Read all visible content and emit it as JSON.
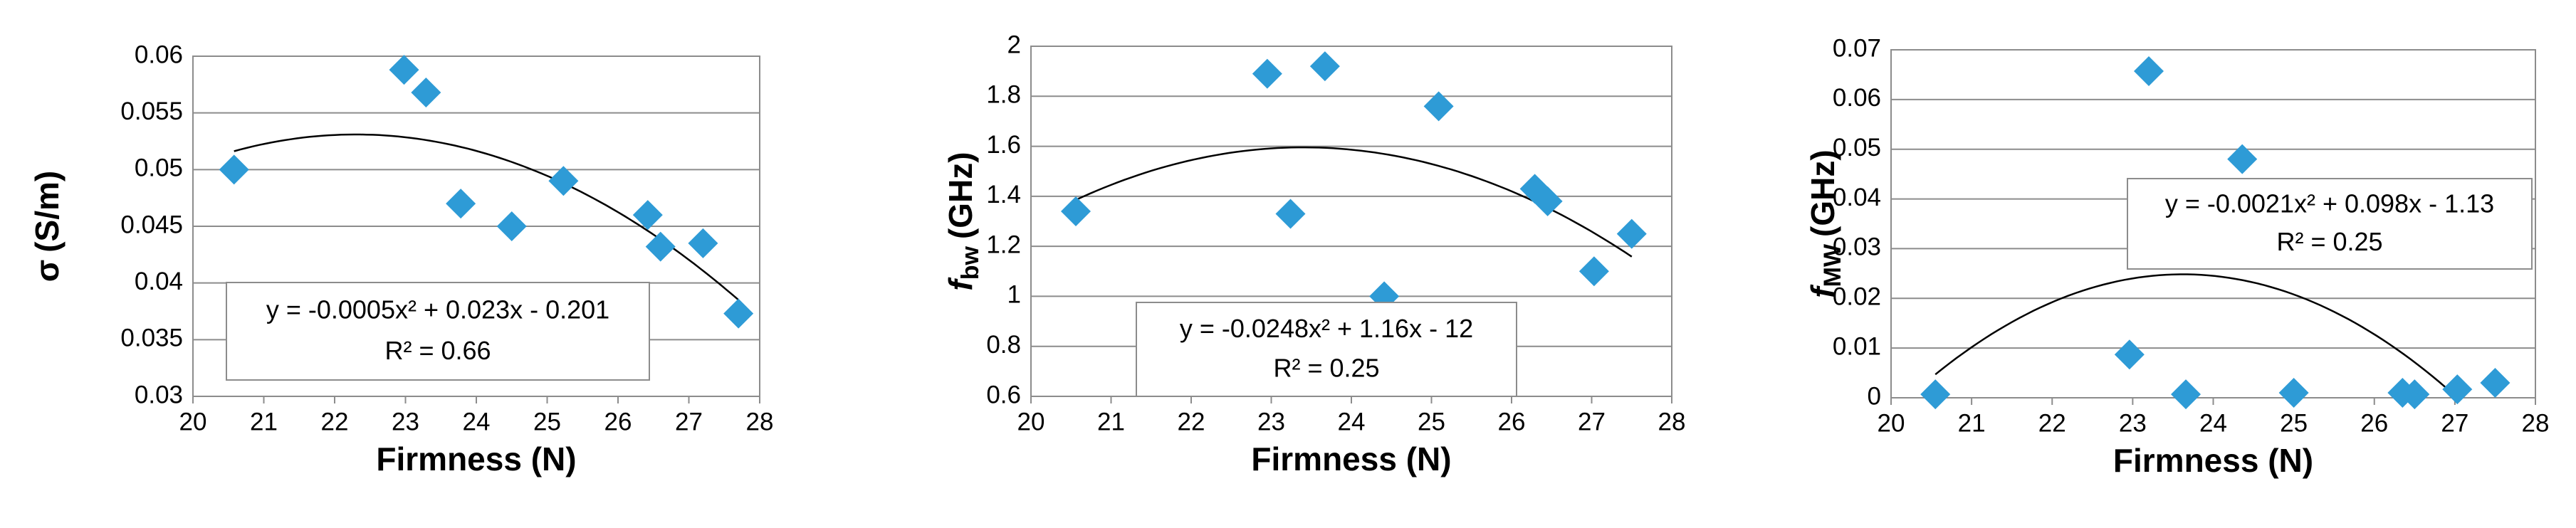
{
  "chart_data": [
    {
      "type": "scatter",
      "color": "#2e9bd6",
      "x_label": "Firmness (N)",
      "y_label_symbol": "σ",
      "y_label_sub": null,
      "y_label_unit": "(S/m)",
      "equation": "y = -0.0005x² + 0.023x - 0.201",
      "r_squared": "R² = 0.66",
      "x": [
        20.58,
        22.98,
        23.29,
        23.78,
        24.5,
        25.23,
        26.42,
        26.6,
        27.2,
        27.7
      ],
      "y": [
        0.05,
        0.0588,
        0.0568,
        0.047,
        0.045,
        0.049,
        0.046,
        0.0432,
        0.0435,
        0.0373
      ],
      "xlim": [
        20,
        28
      ],
      "xticks": [
        20,
        21,
        22,
        23,
        24,
        25,
        26,
        27,
        28
      ],
      "ylim": [
        0.03,
        0.06
      ],
      "yticks": [
        0.03,
        0.035,
        0.04,
        0.045,
        0.05,
        0.055,
        0.06
      ],
      "grid": true
    },
    {
      "type": "scatter",
      "color": "#2e9bd6",
      "x_label": "Firmness (N)",
      "y_label_symbol": "f",
      "y_label_sub": "bw",
      "y_label_unit": "(GHz)",
      "equation": "y = -0.0248x² + 1.16x - 12",
      "r_squared": "R² = 0.25",
      "x": [
        20.56,
        22.95,
        23.24,
        23.67,
        24.41,
        25.09,
        26.29,
        26.45,
        27.03,
        27.5
      ],
      "y": [
        1.34,
        1.89,
        1.33,
        1.92,
        1.0,
        1.76,
        1.43,
        1.38,
        1.1,
        1.25
      ],
      "xlim": [
        20,
        28
      ],
      "xticks": [
        20,
        21,
        22,
        23,
        24,
        25,
        26,
        27,
        28
      ],
      "ylim": [
        0.6,
        2
      ],
      "yticks": [
        0.6,
        0.8,
        1,
        1.2,
        1.4,
        1.6,
        1.8,
        2
      ],
      "grid": true
    },
    {
      "type": "scatter",
      "color": "#2e9bd6",
      "x_label": "Firmness (N)",
      "y_label_symbol": "f",
      "y_label_sub": "MW",
      "y_label_unit": "(GHz)",
      "equation": "y = -0.0021x² + 0.098x - 1.13",
      "r_squared": "R² = 0.25",
      "x": [
        20.55,
        22.96,
        23.2,
        23.66,
        24.36,
        25.0,
        26.35,
        26.5,
        27.03,
        27.5
      ],
      "y": [
        0.0007,
        0.0087,
        0.0657,
        0.0007,
        0.048,
        0.001,
        0.001,
        0.0007,
        0.0017,
        0.003
      ],
      "xlim": [
        20,
        28
      ],
      "xticks": [
        20,
        21,
        22,
        23,
        24,
        25,
        26,
        27,
        28
      ],
      "ylim": [
        0,
        0.07
      ],
      "yticks": [
        0,
        0.01,
        0.02,
        0.03,
        0.04,
        0.05,
        0.06,
        0.07
      ],
      "grid": true
    }
  ]
}
